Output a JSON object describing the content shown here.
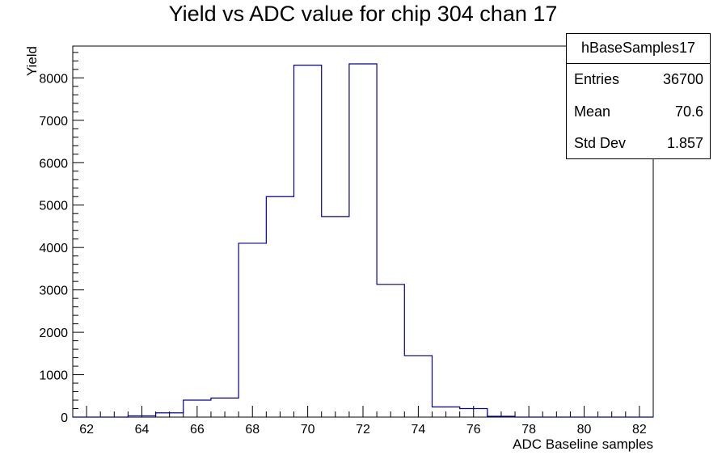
{
  "title": "Yield vs ADC value for chip 304 chan 17",
  "stats": {
    "name": "hBaseSamples17",
    "rows": [
      {
        "label": "Entries",
        "value": "36700"
      },
      {
        "label": "Mean",
        "value": "70.6"
      },
      {
        "label": "Std Dev",
        "value": "1.857"
      }
    ]
  },
  "colors": {
    "histogram_line": "#000099",
    "axis": "#000000",
    "background": "#ffffff"
  },
  "chart_data": {
    "type": "bar",
    "style": "step-histogram",
    "title": "Yield vs ADC value for chip 304 chan 17",
    "xlabel": "ADC Baseline samples",
    "ylabel": "Yield",
    "xlim": [
      61.5,
      82.5
    ],
    "ylim": [
      0,
      8750
    ],
    "xticks": [
      62,
      64,
      66,
      68,
      70,
      72,
      74,
      76,
      78,
      80,
      82
    ],
    "yticks": [
      0,
      1000,
      2000,
      3000,
      4000,
      5000,
      6000,
      7000,
      8000
    ],
    "bin_width": 1,
    "bins": [
      {
        "x": 62,
        "count": 0
      },
      {
        "x": 63,
        "count": 0
      },
      {
        "x": 64,
        "count": 30
      },
      {
        "x": 65,
        "count": 100
      },
      {
        "x": 66,
        "count": 400
      },
      {
        "x": 67,
        "count": 450
      },
      {
        "x": 68,
        "count": 4100
      },
      {
        "x": 69,
        "count": 5200
      },
      {
        "x": 70,
        "count": 8300
      },
      {
        "x": 71,
        "count": 4730
      },
      {
        "x": 72,
        "count": 8330
      },
      {
        "x": 73,
        "count": 3130
      },
      {
        "x": 74,
        "count": 1450
      },
      {
        "x": 75,
        "count": 240
      },
      {
        "x": 76,
        "count": 200
      },
      {
        "x": 77,
        "count": 20
      },
      {
        "x": 78,
        "count": 0
      },
      {
        "x": 79,
        "count": 0
      },
      {
        "x": 80,
        "count": 0
      },
      {
        "x": 81,
        "count": 0
      },
      {
        "x": 82,
        "count": 0
      }
    ],
    "legend": "stats box top-right",
    "grid": false
  }
}
